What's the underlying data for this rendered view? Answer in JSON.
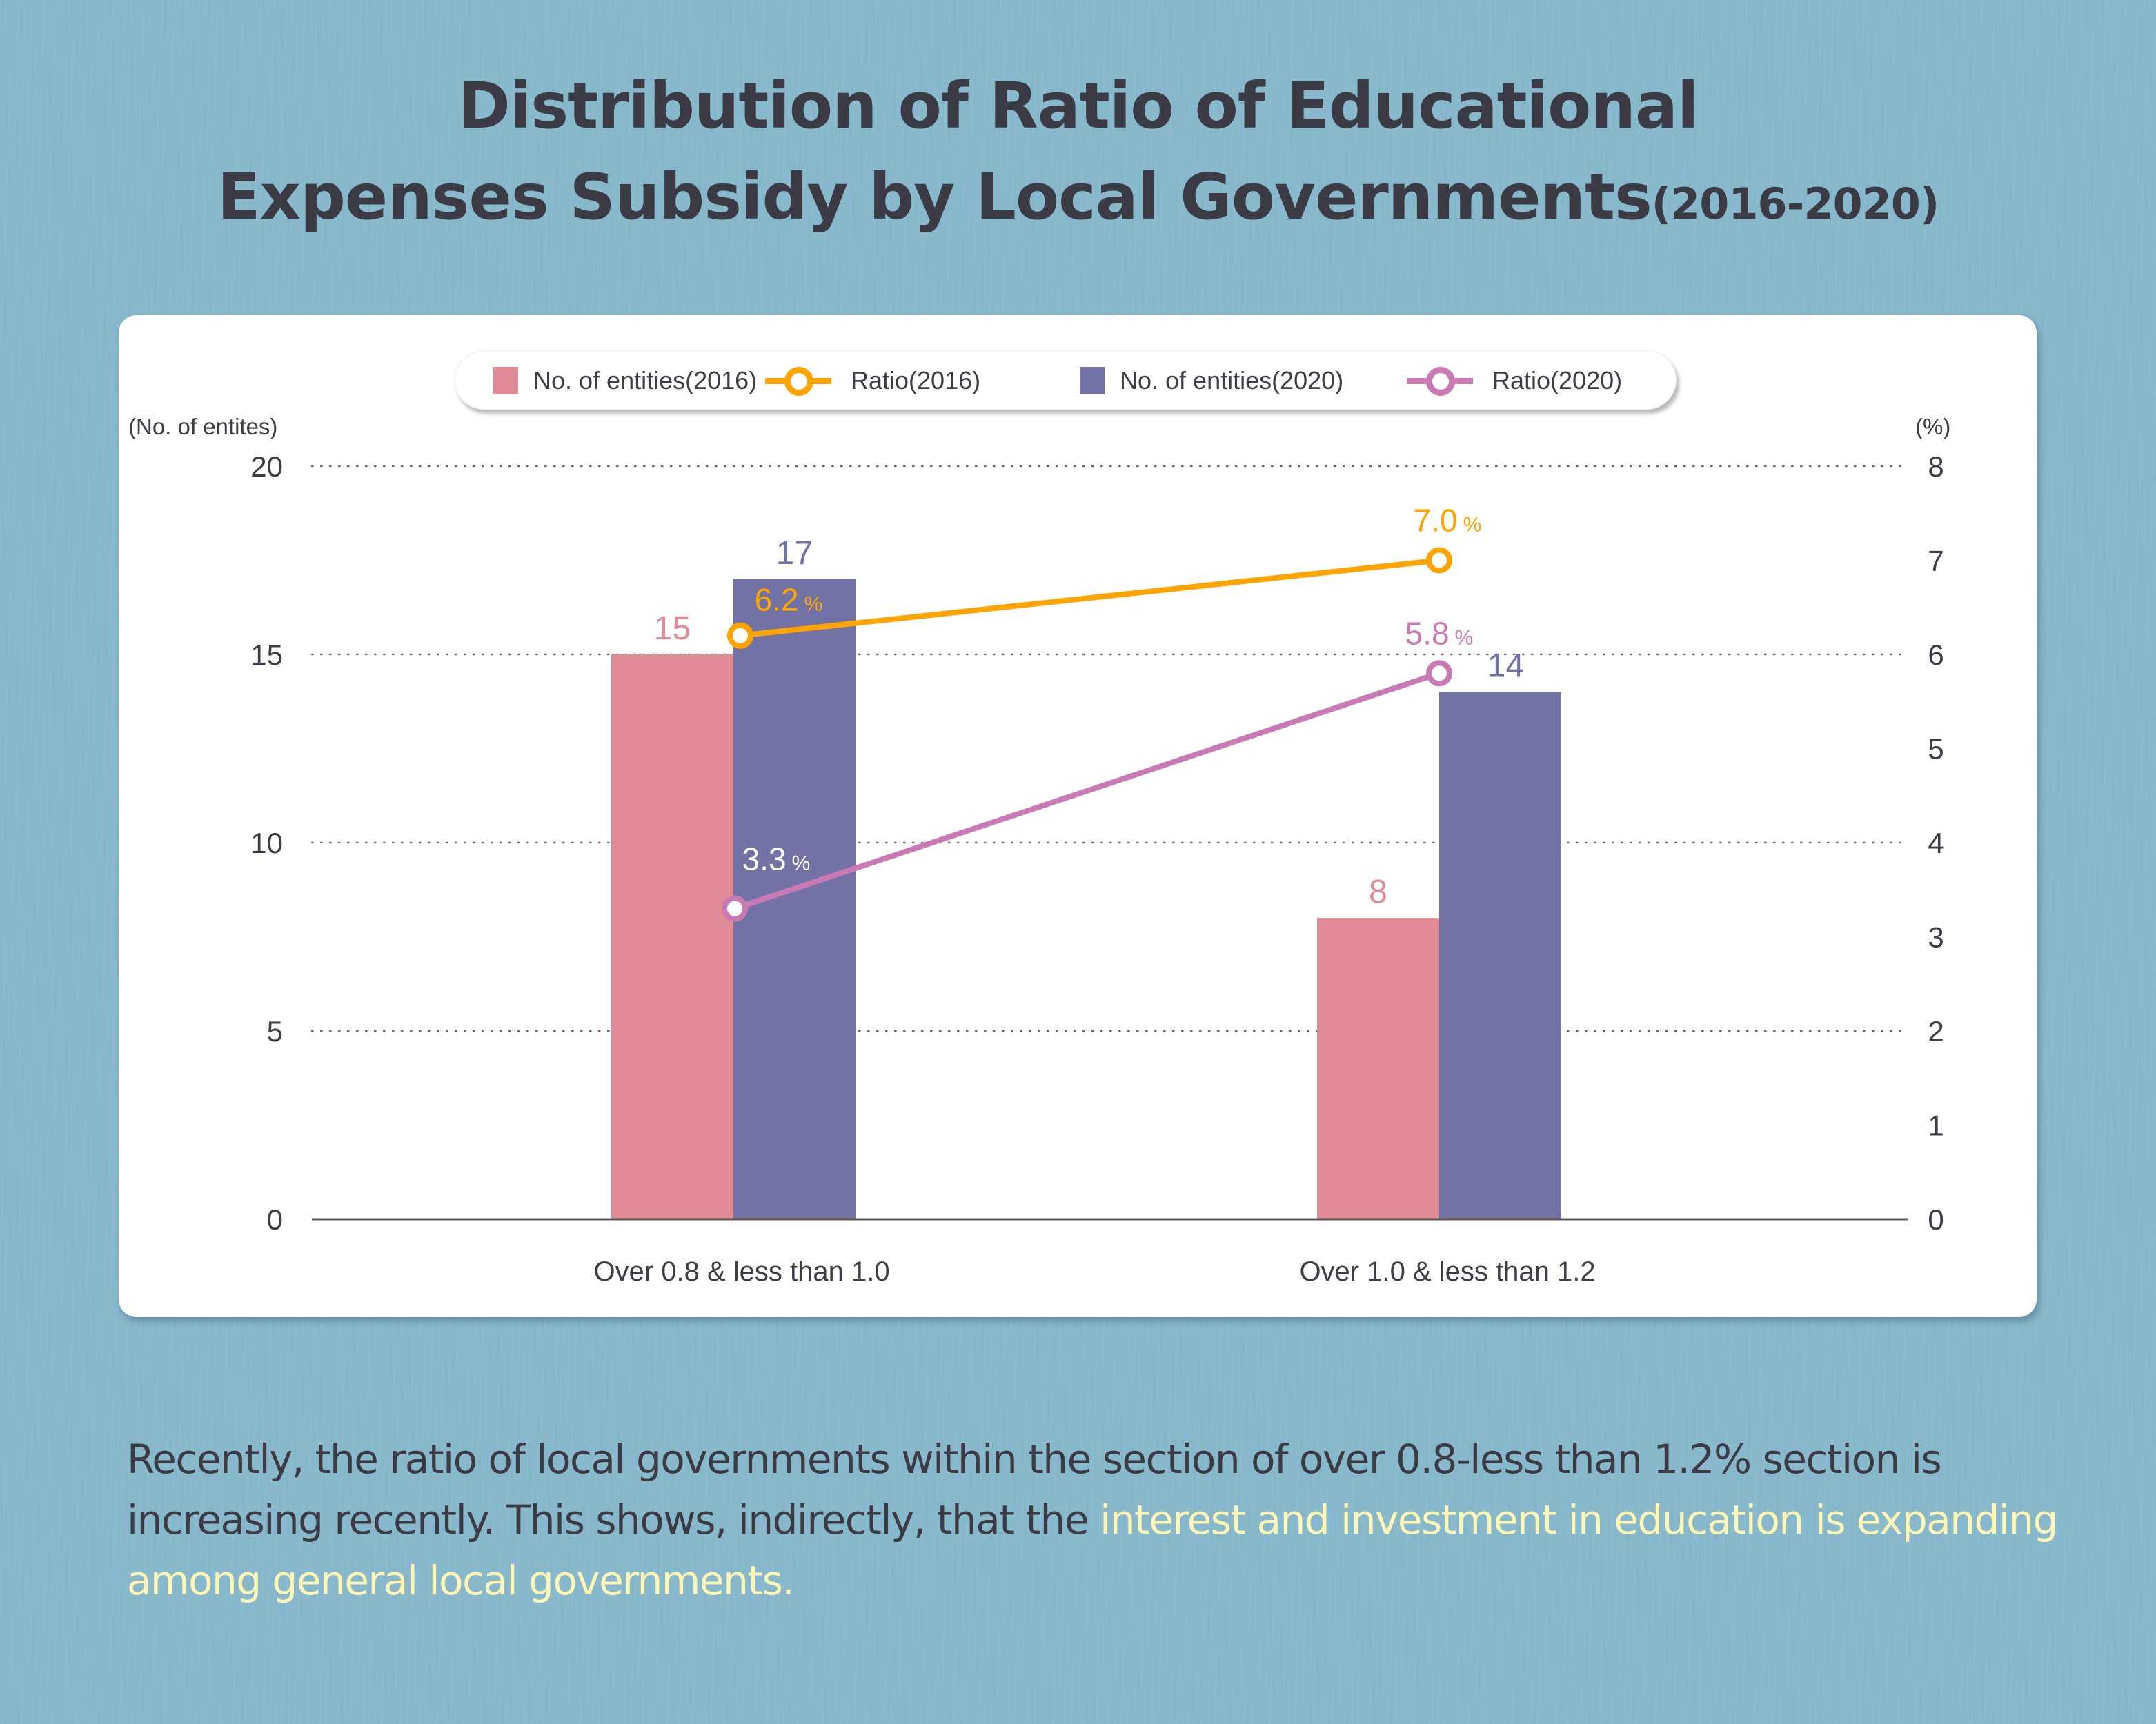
{
  "title": {
    "line1": "Distribution of Ratio of Educational",
    "line2": "Expenses Subsidy by Local Governments",
    "years": "(2016-2020)"
  },
  "note": {
    "text": "Recently, the ratio of local governments within the section of over 0.8-less than 1.2% section is increasing recently. This shows, indirectly, that the ",
    "highlight": "interest and investment in education is expanding among general local governments."
  },
  "colors": {
    "background": "#88b8cb",
    "bar2016": "#e08a96",
    "bar2020": "#7272a5",
    "ratio2016": "#ffa400",
    "ratio2020": "#c97ab2",
    "text": "#3d3d47",
    "highlight": "#fcf7b6"
  },
  "chart_data": {
    "type": "bar",
    "title": "Distribution of Ratio of Educational Expenses Subsidy by Local Governments(2016-2020)",
    "categories": [
      "Over 0.8 & less than 1.0",
      "Over 1.0 & less than 1.2"
    ],
    "ylabel_left": "(No. of entites)",
    "ylabel_right": "(%)",
    "ylim_left": [
      0,
      20
    ],
    "ylim_right": [
      0,
      8
    ],
    "yticks_left": [
      "0",
      "5",
      "10",
      "15",
      "20"
    ],
    "yticks_right": [
      "0",
      "1",
      "2",
      "3",
      "4",
      "5",
      "6",
      "7",
      "8"
    ],
    "grid": true,
    "legend_position": "top-center",
    "series": [
      {
        "name": "No. of entities(2016)",
        "type": "bar",
        "axis": "left",
        "values": [
          15,
          8
        ],
        "labels": [
          "15",
          "8"
        ]
      },
      {
        "name": "Ratio(2016)",
        "type": "line",
        "axis": "right",
        "values": [
          6.2,
          7.0
        ],
        "labels": [
          "6.2",
          "7.0"
        ],
        "unit": "%"
      },
      {
        "name": "No. of entities(2020)",
        "type": "bar",
        "axis": "left",
        "values": [
          17,
          14
        ],
        "labels": [
          "17",
          "14"
        ]
      },
      {
        "name": "Ratio(2020)",
        "type": "line",
        "axis": "right",
        "values": [
          3.3,
          5.8
        ],
        "labels": [
          "3.3",
          "5.8"
        ],
        "unit": "%"
      }
    ]
  }
}
